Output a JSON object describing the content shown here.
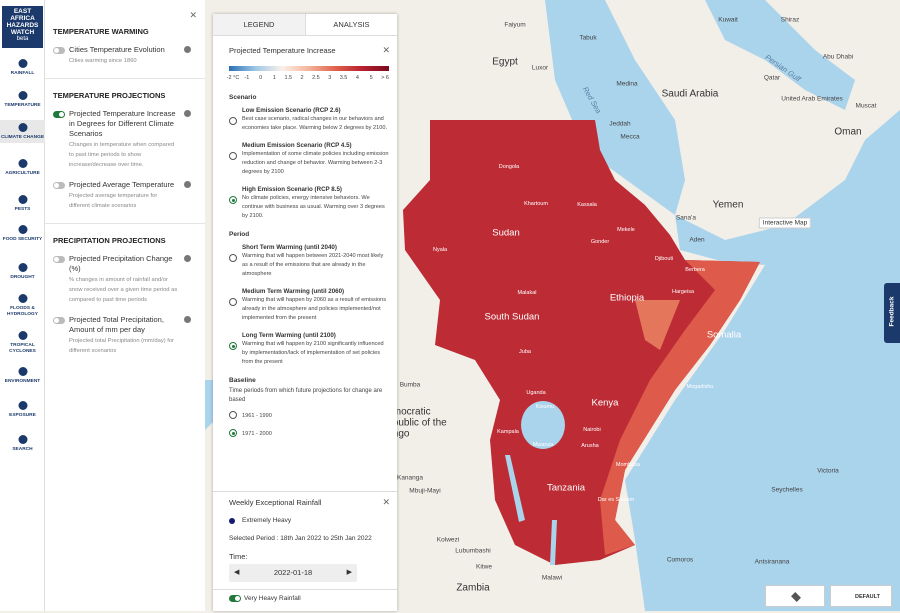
{
  "logo": {
    "lines": [
      "EAST",
      "AFRICA",
      "HAZARDS",
      "WATCH"
    ],
    "tag": "beta"
  },
  "nav": [
    "RAINFALL",
    "TEMPERATURE",
    "CLIMATE CHANGE",
    "AGRICULTURE",
    "PESTS",
    "FOOD SECURITY",
    "DROUGHT",
    "FLOODS & HYDROLOGY",
    "TROPICAL CYCLONES",
    "ENVIRONMENT",
    "EXPOSURE",
    "SEARCH"
  ],
  "nav_active": 2,
  "layers": [
    {
      "title": "TEMPERATURE WARMING",
      "items": [
        {
          "name": "Cities Temperature Evolution",
          "desc": "Cities warming since 1860",
          "active": false
        }
      ]
    },
    {
      "title": "TEMPERATURE PROJECTIONS",
      "items": [
        {
          "name": "Projected Temperature Increase in Degrees for Different Climate Scenarios",
          "desc": "Changes in temperature when compared to past time periods to show increase/decrease over time.",
          "active": true
        },
        {
          "name": "Projected Average Temperature",
          "desc": "Projected average temperature for different climate scenarios",
          "active": false
        }
      ]
    },
    {
      "title": "PRECIPITATION PROJECTIONS",
      "items": [
        {
          "name": "Projected Precipitation Change (%)",
          "desc": "% changes in amount of rainfall and/or snow received over a given time period as compared to past time periods",
          "active": false
        },
        {
          "name": "Projected Total Precipitation, Amount of mm per day",
          "desc": "Projected total Precipitation (mm/day) for different scenarios",
          "active": false
        }
      ]
    }
  ],
  "tabs": [
    "LEGEND",
    "ANALYSIS"
  ],
  "legend_card": {
    "title": "Projected Temperature Increase",
    "scale": [
      "-2 °C",
      "-1",
      "0",
      "1",
      "1.5",
      "2",
      "2.5",
      "3",
      "3.5",
      "4",
      "5",
      "> 6"
    ],
    "groups": [
      {
        "title": "Scenario",
        "options": [
          {
            "name": "Low Emission Scenario (RCP 2.6)",
            "desc": "Best case scenario, radical changes in our behaviors and economies take place. Warming below 2 degrees by 2100.",
            "selected": false
          },
          {
            "name": "Medium Emission Scenario (RCP 4.5)",
            "desc": "Implementation of some climate policies including emission reduction and change of behavior. Warming between 2-3 degrees by 2100",
            "selected": false
          },
          {
            "name": "High Emission Scenario (RCP 8.5)",
            "desc": "No climate policies, energy intensive behaviors. We continue with business as usual. Warming over 3 degrees by 2100.",
            "selected": true
          }
        ]
      },
      {
        "title": "Period",
        "options": [
          {
            "name": "Short Term Warming (until 2040)",
            "desc": "Warming that will happen between 2021-2040 most likely as a result of the emissions that are already in the atmosphere",
            "selected": false
          },
          {
            "name": "Medium Term Warming (until 2060)",
            "desc": "Warming that will happen by 2060 as a result of emissions already in the atmosphere and policies implemented/not implemented from the present",
            "selected": false
          },
          {
            "name": "Long Term Warming (until 2100)",
            "desc": "Warming that will happen by 2100 significantly influenced by implementation/lack of implementation of set policies from the present",
            "selected": true
          }
        ]
      },
      {
        "title": "Baseline",
        "desc": "Time periods from which future projections for change are based",
        "options": [
          {
            "name": "1961 - 1990",
            "selected": false
          },
          {
            "name": "1971 - 2000",
            "selected": true
          }
        ]
      }
    ]
  },
  "rainfall_card": {
    "title": "Weekly Exceptional Rainfall",
    "legend": "Extremely Heavy",
    "period": "Selected Period : 18th Jan 2022 to 25th Jan 2022",
    "time_label": "Time:",
    "date": "2022-01-18",
    "toggle": "Very Heavy Rainfall"
  },
  "map_labels": [
    "Faiyum",
    "Kuwait",
    "Shiraz",
    "Tabuk",
    "Egypt",
    "Luxor",
    "Persian Gulf",
    "Qatar",
    "Abu Dhabi",
    "Medina",
    "Saudi Arabia",
    "United Arab Emirates",
    "Muscat",
    "Red Sea",
    "Jeddah",
    "Mecca",
    "Oman",
    "Yemen",
    "Sana'a",
    "Interactive Map",
    "Aden",
    "Dongola",
    "Khartoum",
    "Kassala",
    "Mekele",
    "Gonder",
    "Sudan",
    "Nyala",
    "Djibouti",
    "Berbera",
    "Hargeisa",
    "Ethiopia",
    "Malakal",
    "South Sudan",
    "Somalia",
    "Juba",
    "Uganda",
    "Mogadishu",
    "Kenya",
    "Kampala",
    "Kisumu",
    "Nairobi",
    "Arusha",
    "Mwanza",
    "Victoria",
    "Seychelles",
    "Mombasa",
    "Tanzania",
    "Dar es Salaam",
    "Democratic Republic of the Congo",
    "Bumba",
    "Kananga",
    "Mbuji-Mayi",
    "Kolwezi",
    "Lubumbashi",
    "Kitwe",
    "Zambia",
    "Malawi",
    "Comoros",
    "Antsiranana"
  ],
  "feedback": "Feedback",
  "default_button": "DEFAULT"
}
